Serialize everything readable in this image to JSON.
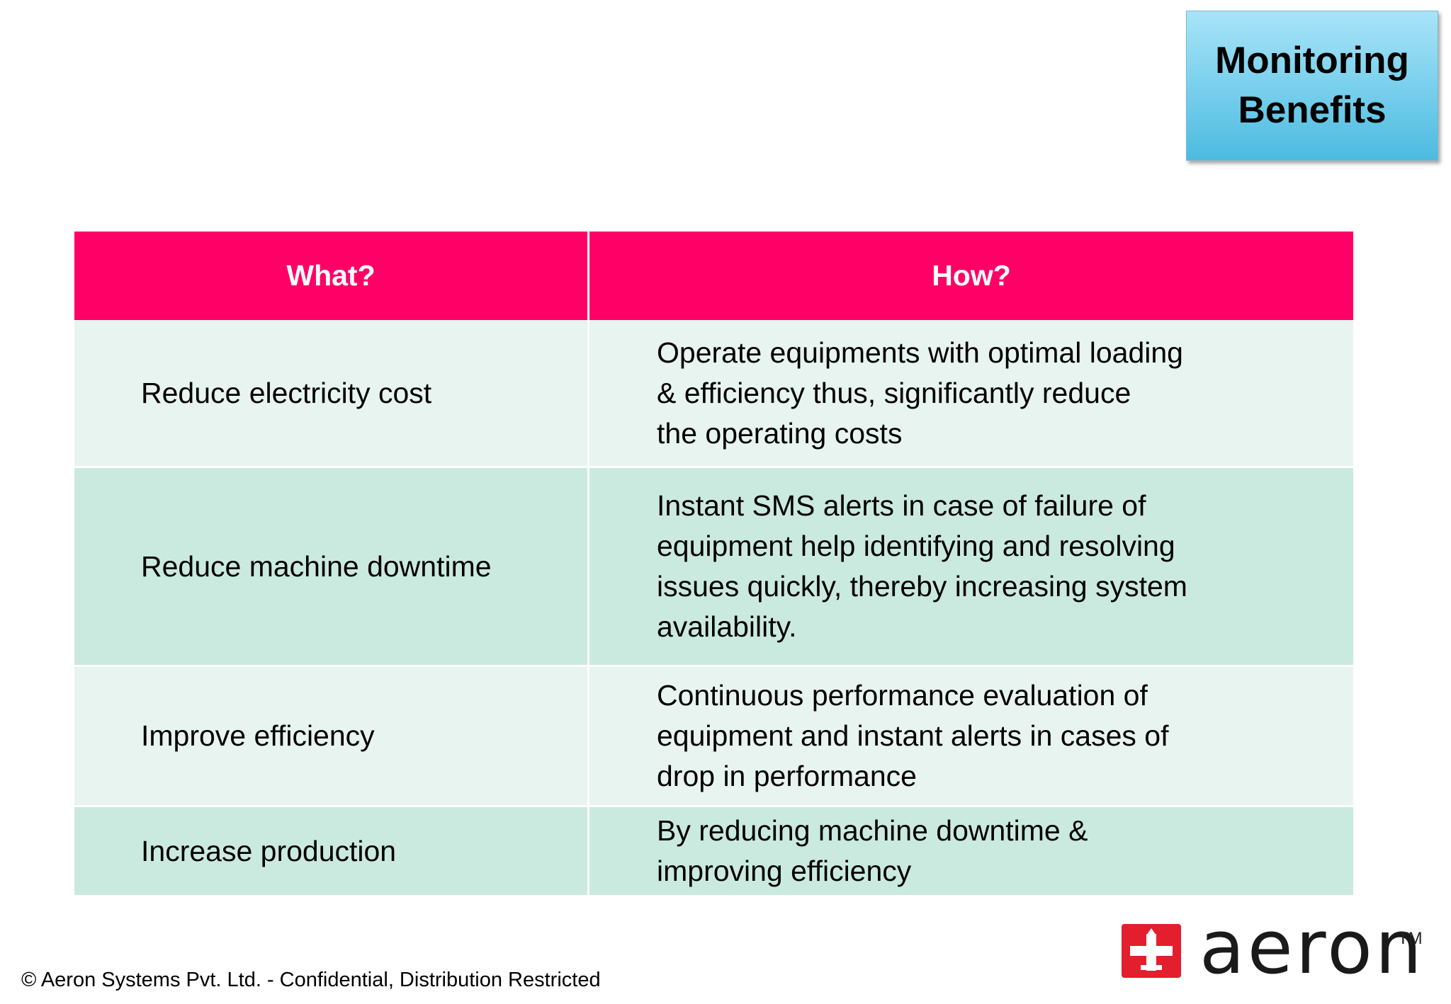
{
  "badge": {
    "line1": "Monitoring",
    "line2": "Benefits"
  },
  "table": {
    "headers": [
      "What?",
      "How?"
    ],
    "rows": [
      {
        "what": "Reduce electricity cost",
        "how": [
          "Operate equipments with optimal loading",
          "& efficiency thus, significantly reduce",
          "the operating costs"
        ]
      },
      {
        "what": "Reduce machine downtime",
        "how": [
          "Instant SMS alerts in case of failure of",
          "equipment help identifying and resolving",
          "issues quickly, thereby increasing system",
          "availability."
        ]
      },
      {
        "what": "Improve efficiency",
        "how": [
          "Continuous performance evaluation of",
          "equipment and instant alerts in cases of",
          "drop in performance"
        ]
      },
      {
        "what": "Increase production",
        "how": [
          "By reducing machine downtime &",
          "improving efficiency"
        ]
      }
    ]
  },
  "footer": {
    "text": "© Aeron Systems Pvt. Ltd. - Confidential, Distribution Restricted"
  },
  "logo": {
    "text": "aeron",
    "tm": "TM",
    "icon": "plane-cross-icon",
    "color": "#e31e2d"
  },
  "colors": {
    "header": "#ff0066",
    "row_light": "#e8f4f0",
    "row_dark": "#cbeadf",
    "badge": "#7fd2ee"
  }
}
